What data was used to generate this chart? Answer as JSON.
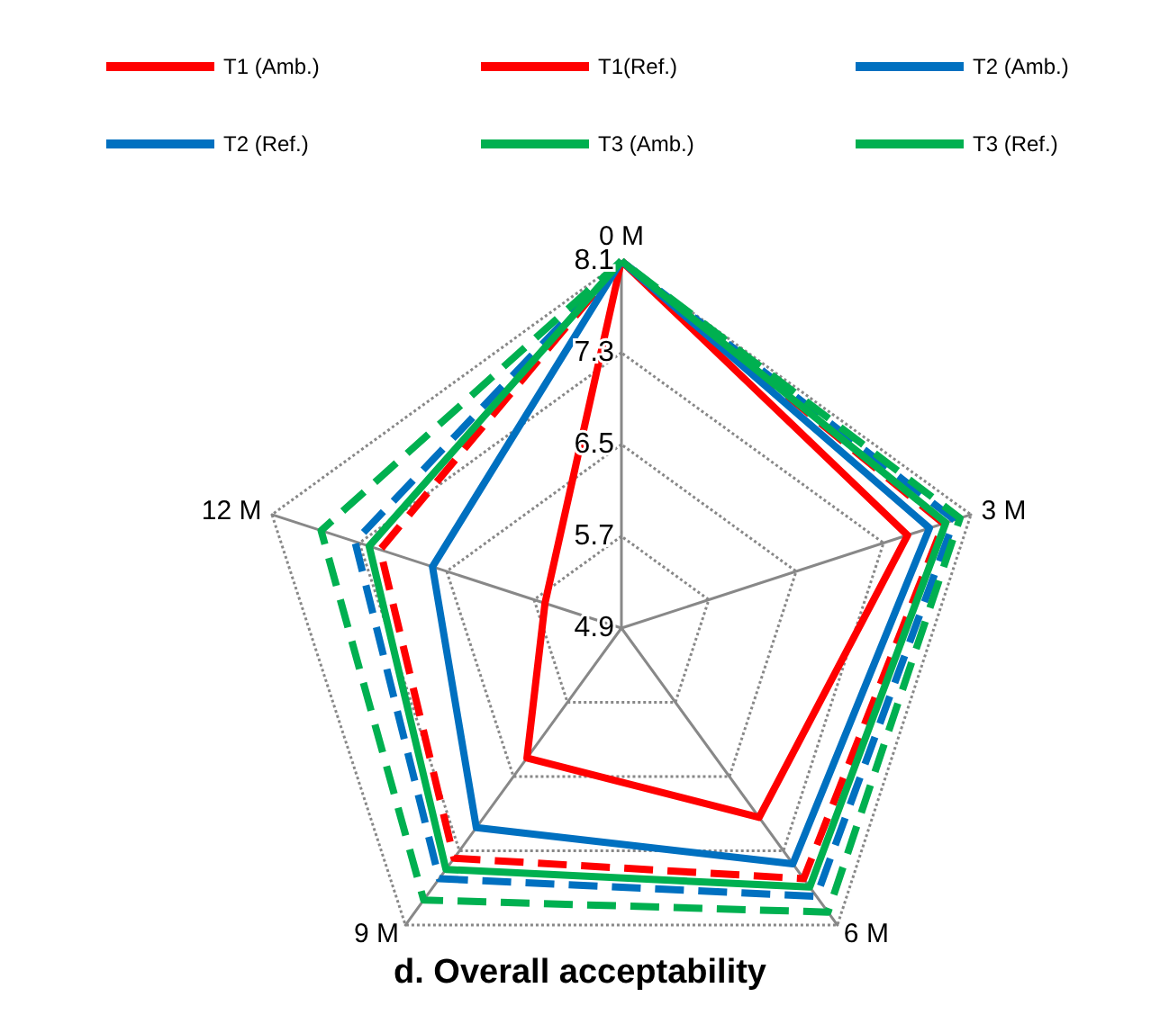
{
  "chart_data": {
    "type": "radar",
    "title": "d. Overall acceptability",
    "categories": [
      "0 M",
      "3 M",
      "6 M",
      "9 M",
      "12 M"
    ],
    "series": [
      {
        "name": "T1 (Amb.)",
        "color": "#ff0000",
        "line_style": "solid",
        "values": [
          8.1,
          7.52,
          6.94,
          6.3,
          5.6
        ]
      },
      {
        "name": "T1(Ref.)",
        "color": "#ff0000",
        "line_style": "dashed",
        "values": [
          8.1,
          7.85,
          7.6,
          7.38,
          7.11
        ]
      },
      {
        "name": "T2 (Amb.)",
        "color": "#0070c0",
        "line_style": "solid",
        "values": [
          8.1,
          7.72,
          7.44,
          7.05,
          6.63
        ]
      },
      {
        "name": "T2 (Ref.)",
        "color": "#0070c0",
        "line_style": "dashed",
        "values": [
          8.1,
          7.95,
          7.79,
          7.6,
          7.34
        ]
      },
      {
        "name": "T3 (Amb.)",
        "color": "#00b050",
        "line_style": "solid",
        "values": [
          8.1,
          7.87,
          7.69,
          7.5,
          7.21
        ]
      },
      {
        "name": "T3 (Ref.)",
        "color": "#00b050",
        "line_style": "dashed",
        "values": [
          8.1,
          8.0,
          7.96,
          7.83,
          7.65
        ]
      }
    ],
    "ylim": [
      4.9,
      8.1
    ],
    "yticks": [
      4.9,
      5.7,
      6.5,
      7.3,
      8.1
    ],
    "grid": true,
    "legend": "top",
    "marker": "none"
  }
}
